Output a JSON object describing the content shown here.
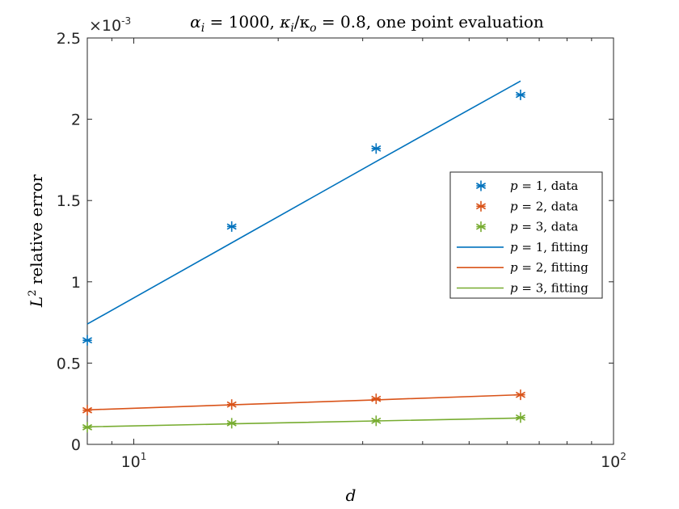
{
  "chart_data": {
    "type": "line",
    "title": "α_i = 1000, κ_i/κ_o = 0.8, one point evaluation",
    "title_parts": {
      "alpha": "α",
      "alpha_sub": "i",
      "alpha_val": " = 1000, ",
      "kappa": "κ",
      "kappa_i_sub": "i",
      "slash": "/κ",
      "kappa_o_sub": "o",
      "kappa_val": " = 0.8, one point evaluation"
    },
    "xlabel": "d",
    "ylabel": "L² relative error",
    "ylabel_parts": {
      "base": "L",
      "sup": "2",
      "rest": " relative error"
    },
    "x_scale": "log",
    "xlim": [
      8,
      100
    ],
    "ylim": [
      0,
      0.0025
    ],
    "y_multiplier_label": {
      "times": "×10",
      "exp": "-3"
    },
    "x_ticks": [
      {
        "value": 10,
        "base": "10",
        "exp": "1"
      },
      {
        "value": 100,
        "base": "10",
        "exp": "2"
      }
    ],
    "y_ticks": [
      {
        "value": 0,
        "label": "0"
      },
      {
        "value": 0.0005,
        "label": "0.5"
      },
      {
        "value": 0.001,
        "label": "1"
      },
      {
        "value": 0.0015,
        "label": "1.5"
      },
      {
        "value": 0.002,
        "label": "2"
      },
      {
        "value": 0.0025,
        "label": "2.5"
      }
    ],
    "grid": false,
    "legend_position": "right",
    "x": [
      8,
      16,
      32,
      64
    ],
    "series": [
      {
        "name": "p = 1, data",
        "kind": "data",
        "color": "#0072BD",
        "values": [
          0.00064,
          0.00134,
          0.00182,
          0.00215
        ]
      },
      {
        "name": "p = 2, data",
        "kind": "data",
        "color": "#D95319",
        "values": [
          0.00021,
          0.000245,
          0.00028,
          0.000305
        ]
      },
      {
        "name": "p = 3, data",
        "kind": "data",
        "color": "#77AC30",
        "values": [
          0.000105,
          0.00013,
          0.000145,
          0.000165
        ]
      },
      {
        "name": "p = 1, fitting",
        "kind": "fit",
        "color": "#0072BD",
        "values": [
          0.00074,
          0.00124,
          0.00174,
          0.002235
        ]
      },
      {
        "name": "p = 2, fitting",
        "kind": "fit",
        "color": "#D95319",
        "values": [
          0.000212,
          0.000243,
          0.000274,
          0.000305
        ]
      },
      {
        "name": "p = 3, fitting",
        "kind": "fit",
        "color": "#77AC30",
        "values": [
          0.000108,
          0.000126,
          0.000144,
          0.000162
        ]
      }
    ],
    "legend_labels": [
      {
        "var": "p",
        "rest": " = 1, data"
      },
      {
        "var": "p",
        "rest": " = 2, data"
      },
      {
        "var": "p",
        "rest": " = 3, data"
      },
      {
        "var": "p",
        "rest": " = 1, fitting"
      },
      {
        "var": "p",
        "rest": " = 2, fitting"
      },
      {
        "var": "p",
        "rest": " = 3, fitting"
      }
    ]
  }
}
